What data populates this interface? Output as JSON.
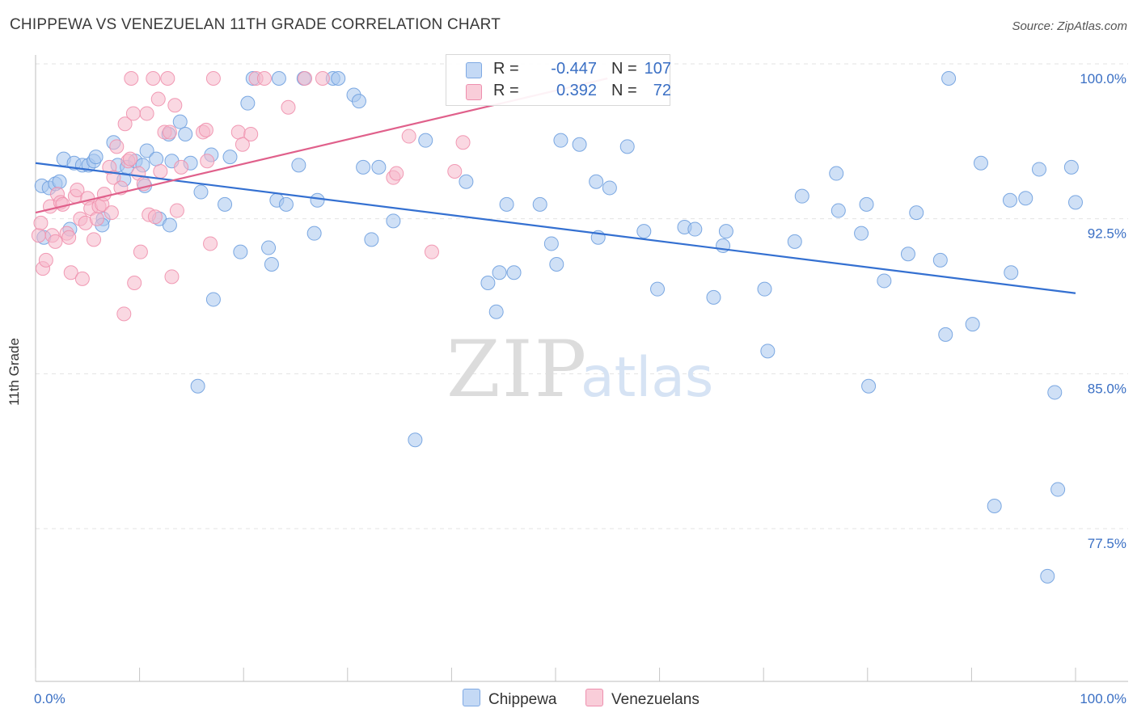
{
  "title": "CHIPPEWA VS VENEZUELAN 11TH GRADE CORRELATION CHART",
  "source": "Source: ZipAtlas.com",
  "watermark": {
    "zip": "ZIP",
    "atlas": "atlas"
  },
  "legend": {
    "rows": [
      {
        "r_label": "R =",
        "r_value": "-0.447",
        "n_label": "N =",
        "n_value": "107",
        "color": "#a8c6ef"
      },
      {
        "r_label": "R =",
        "r_value": "0.392",
        "n_label": "N =",
        "n_value": "72",
        "color": "#f5b8cb"
      }
    ]
  },
  "bottom_legend": [
    {
      "label": "Chippewa",
      "color": "#a8c6ef"
    },
    {
      "label": "Venezuelans",
      "color": "#f5b8cb"
    }
  ],
  "chart_data": {
    "type": "scatter",
    "title": "CHIPPEWA VS VENEZUELAN 11TH GRADE CORRELATION CHART",
    "xlabel": "",
    "ylabel": "11th Grade",
    "xlim": [
      0,
      100
    ],
    "ylim": [
      70.5,
      101.5
    ],
    "x_tick_labels": [
      "0.0%",
      "100.0%"
    ],
    "y_ticks": [
      77.5,
      85.0,
      92.5,
      100.0
    ],
    "y_tick_labels": [
      "77.5%",
      "85.0%",
      "92.5%",
      "100.0%"
    ],
    "grid": true,
    "series": [
      {
        "name": "Chippewa",
        "color": "#6fa0df",
        "fill": "#a8c6ef",
        "trend": {
          "x": [
            0,
            100
          ],
          "y": [
            95.9,
            89.6
          ],
          "color": "#3470d1"
        },
        "points": [
          [
            0.6,
            94.8
          ],
          [
            0.8,
            92.3
          ],
          [
            1.3,
            94.7
          ],
          [
            1.9,
            94.9
          ],
          [
            2.3,
            95.0
          ],
          [
            2.7,
            96.1
          ],
          [
            3.3,
            92.7
          ],
          [
            3.7,
            95.9
          ],
          [
            4.5,
            95.8
          ],
          [
            5.1,
            95.8
          ],
          [
            5.6,
            96.0
          ],
          [
            5.8,
            96.2
          ],
          [
            6.5,
            93.2
          ],
          [
            6.4,
            92.9
          ],
          [
            7.5,
            96.9
          ],
          [
            7.9,
            95.8
          ],
          [
            8.5,
            95.1
          ],
          [
            8.8,
            95.7
          ],
          [
            9.6,
            96.0
          ],
          [
            10.3,
            95.8
          ],
          [
            10.5,
            94.8
          ],
          [
            10.7,
            96.5
          ],
          [
            11.6,
            96.1
          ],
          [
            11.9,
            93.2
          ],
          [
            12.8,
            97.3
          ],
          [
            12.9,
            92.9
          ],
          [
            13.1,
            96.0
          ],
          [
            13.9,
            97.9
          ],
          [
            14.4,
            97.3
          ],
          [
            14.9,
            95.9
          ],
          [
            15.6,
            85.1
          ],
          [
            15.9,
            94.5
          ],
          [
            16.9,
            96.3
          ],
          [
            17.1,
            89.3
          ],
          [
            18.2,
            93.9
          ],
          [
            18.7,
            96.2
          ],
          [
            19.7,
            91.6
          ],
          [
            20.4,
            98.8
          ],
          [
            20.9,
            100.0
          ],
          [
            22.4,
            91.8
          ],
          [
            22.7,
            91.0
          ],
          [
            23.2,
            94.1
          ],
          [
            23.4,
            100.0
          ],
          [
            24.1,
            93.9
          ],
          [
            25.3,
            95.8
          ],
          [
            25.8,
            100.0
          ],
          [
            26.8,
            92.5
          ],
          [
            27.1,
            94.1
          ],
          [
            28.6,
            100.0
          ],
          [
            29.1,
            100.0
          ],
          [
            30.6,
            99.2
          ],
          [
            31.1,
            98.9
          ],
          [
            31.5,
            95.7
          ],
          [
            32.3,
            92.2
          ],
          [
            33.0,
            95.7
          ],
          [
            34.4,
            93.1
          ],
          [
            36.5,
            82.5
          ],
          [
            37.5,
            97.0
          ],
          [
            41.4,
            95.0
          ],
          [
            43.5,
            90.1
          ],
          [
            44.3,
            88.7
          ],
          [
            44.6,
            90.6
          ],
          [
            45.3,
            93.9
          ],
          [
            46.0,
            90.6
          ],
          [
            48.5,
            93.9
          ],
          [
            49.6,
            92.0
          ],
          [
            50.1,
            91.0
          ],
          [
            50.5,
            97.0
          ],
          [
            52.3,
            96.8
          ],
          [
            53.9,
            95.0
          ],
          [
            54.1,
            92.3
          ],
          [
            55.2,
            94.7
          ],
          [
            56.9,
            96.7
          ],
          [
            58.5,
            92.6
          ],
          [
            59.8,
            89.8
          ],
          [
            62.4,
            92.8
          ],
          [
            63.4,
            92.7
          ],
          [
            65.2,
            89.4
          ],
          [
            66.1,
            91.9
          ],
          [
            66.4,
            92.6
          ],
          [
            70.1,
            89.8
          ],
          [
            70.4,
            86.8
          ],
          [
            73.0,
            92.1
          ],
          [
            73.7,
            94.3
          ],
          [
            77.0,
            95.4
          ],
          [
            77.2,
            93.6
          ],
          [
            79.4,
            92.5
          ],
          [
            79.9,
            93.9
          ],
          [
            80.1,
            85.1
          ],
          [
            81.6,
            90.2
          ],
          [
            83.9,
            91.5
          ],
          [
            84.7,
            93.5
          ],
          [
            87.0,
            91.2
          ],
          [
            87.5,
            87.6
          ],
          [
            87.8,
            100.0
          ],
          [
            90.1,
            88.1
          ],
          [
            90.9,
            95.9
          ],
          [
            92.2,
            79.3
          ],
          [
            93.7,
            94.1
          ],
          [
            93.8,
            90.6
          ],
          [
            95.2,
            94.2
          ],
          [
            96.5,
            95.6
          ],
          [
            98.0,
            84.8
          ],
          [
            98.3,
            80.1
          ],
          [
            97.3,
            75.9
          ],
          [
            99.6,
            95.7
          ],
          [
            100.0,
            94.0
          ]
        ]
      },
      {
        "name": "Venezuelans",
        "color": "#ef90ad",
        "fill": "#f5b8cb",
        "trend": {
          "x": [
            0,
            55
          ],
          "y": [
            93.5,
            100.0
          ],
          "color": "#e0608b"
        },
        "points": [
          [
            0.3,
            92.4
          ],
          [
            0.5,
            93.0
          ],
          [
            0.7,
            90.8
          ],
          [
            1.0,
            91.2
          ],
          [
            1.4,
            93.8
          ],
          [
            1.6,
            92.4
          ],
          [
            1.9,
            92.1
          ],
          [
            2.1,
            94.4
          ],
          [
            2.4,
            94.0
          ],
          [
            2.6,
            93.9
          ],
          [
            3.0,
            92.5
          ],
          [
            3.2,
            92.3
          ],
          [
            3.4,
            90.6
          ],
          [
            3.8,
            94.3
          ],
          [
            4.0,
            94.6
          ],
          [
            4.3,
            93.2
          ],
          [
            4.5,
            90.3
          ],
          [
            4.8,
            93.0
          ],
          [
            5.0,
            94.2
          ],
          [
            5.3,
            93.7
          ],
          [
            5.6,
            92.2
          ],
          [
            5.9,
            93.2
          ],
          [
            6.1,
            93.8
          ],
          [
            6.4,
            93.9
          ],
          [
            6.6,
            94.4
          ],
          [
            7.1,
            95.7
          ],
          [
            7.3,
            93.5
          ],
          [
            7.5,
            95.2
          ],
          [
            7.8,
            96.7
          ],
          [
            8.2,
            94.7
          ],
          [
            8.5,
            88.6
          ],
          [
            8.6,
            97.8
          ],
          [
            8.9,
            96.0
          ],
          [
            9.1,
            96.1
          ],
          [
            9.2,
            100.0
          ],
          [
            9.4,
            98.3
          ],
          [
            9.5,
            90.1
          ],
          [
            9.9,
            95.4
          ],
          [
            10.1,
            91.6
          ],
          [
            10.4,
            94.9
          ],
          [
            10.7,
            98.3
          ],
          [
            10.9,
            93.4
          ],
          [
            11.3,
            100.0
          ],
          [
            11.5,
            93.3
          ],
          [
            11.8,
            99.0
          ],
          [
            12.0,
            95.5
          ],
          [
            12.4,
            97.4
          ],
          [
            12.7,
            100.0
          ],
          [
            12.9,
            97.4
          ],
          [
            13.1,
            90.4
          ],
          [
            13.4,
            98.7
          ],
          [
            13.6,
            93.6
          ],
          [
            14.0,
            95.7
          ],
          [
            16.1,
            97.4
          ],
          [
            16.4,
            97.5
          ],
          [
            16.5,
            96.0
          ],
          [
            16.8,
            92.0
          ],
          [
            17.1,
            100.0
          ],
          [
            19.5,
            97.4
          ],
          [
            19.9,
            96.8
          ],
          [
            20.7,
            97.3
          ],
          [
            21.2,
            100.0
          ],
          [
            22.0,
            100.0
          ],
          [
            24.3,
            98.6
          ],
          [
            25.9,
            100.0
          ],
          [
            27.6,
            100.0
          ],
          [
            34.4,
            95.2
          ],
          [
            34.7,
            95.4
          ],
          [
            35.9,
            97.2
          ],
          [
            38.1,
            91.6
          ],
          [
            41.1,
            96.9
          ],
          [
            40.3,
            95.5
          ]
        ]
      }
    ]
  }
}
